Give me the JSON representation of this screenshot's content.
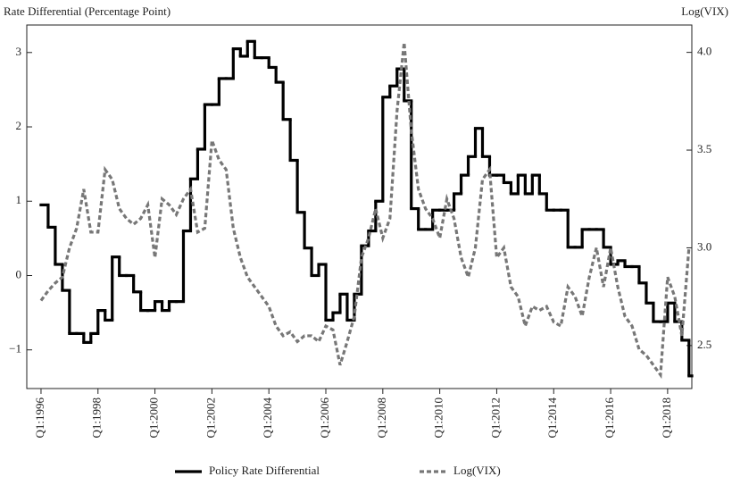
{
  "chart_data": {
    "type": "line",
    "y_label": "Rate Differential (Percentage Point)",
    "y2_label": "Log(VIX)",
    "x": [
      1996,
      1996.25,
      1996.5,
      1996.75,
      1997,
      1997.25,
      1997.5,
      1997.75,
      1998,
      1998.25,
      1998.5,
      1998.75,
      1999,
      1999.25,
      1999.5,
      1999.75,
      2000,
      2000.25,
      2000.5,
      2000.75,
      2001,
      2001.25,
      2001.5,
      2001.75,
      2002,
      2002.25,
      2002.5,
      2002.75,
      2003,
      2003.25,
      2003.5,
      2003.75,
      2004,
      2004.25,
      2004.5,
      2004.75,
      2005,
      2005.25,
      2005.5,
      2005.75,
      2006,
      2006.25,
      2006.5,
      2006.75,
      2007,
      2007.25,
      2007.5,
      2007.75,
      2008,
      2008.25,
      2008.5,
      2008.75,
      2009,
      2009.25,
      2009.5,
      2009.75,
      2010,
      2010.25,
      2010.5,
      2010.75,
      2011,
      2011.25,
      2011.5,
      2011.75,
      2012,
      2012.25,
      2012.5,
      2012.75,
      2013,
      2013.25,
      2013.5,
      2013.75,
      2014,
      2014.25,
      2014.5,
      2014.75,
      2015,
      2015.25,
      2015.5,
      2015.75,
      2016,
      2016.25,
      2016.5,
      2016.75,
      2017,
      2017.25,
      2017.5,
      2017.75,
      2018,
      2018.25,
      2018.5,
      2018.75
    ],
    "series": [
      {
        "name": "Policy Rate Differential",
        "color": "#000000",
        "style": "step",
        "axis": "y",
        "values": [
          0.95,
          0.65,
          0.15,
          -0.2,
          -0.78,
          -0.78,
          -0.9,
          -0.78,
          -0.47,
          -0.6,
          0.25,
          0.0,
          0.0,
          -0.22,
          -0.47,
          -0.47,
          -0.35,
          -0.47,
          -0.35,
          -0.35,
          0.6,
          1.3,
          1.7,
          2.3,
          2.3,
          2.65,
          2.65,
          3.05,
          2.95,
          3.15,
          2.93,
          2.93,
          2.8,
          2.6,
          2.1,
          1.55,
          0.85,
          0.37,
          0.0,
          0.15,
          -0.6,
          -0.5,
          -0.25,
          -0.6,
          -0.25,
          0.4,
          0.6,
          1.0,
          2.4,
          2.55,
          2.78,
          2.35,
          0.9,
          0.62,
          0.62,
          0.88,
          0.88,
          0.88,
          1.1,
          1.35,
          1.6,
          1.98,
          1.6,
          1.35,
          1.35,
          1.25,
          1.1,
          1.35,
          1.1,
          1.35,
          1.1,
          0.88,
          0.88,
          0.88,
          0.38,
          0.38,
          0.62,
          0.62,
          0.62,
          0.38,
          0.15,
          0.2,
          0.12,
          0.12,
          -0.1,
          -0.37,
          -0.62,
          -0.62,
          -0.37,
          -0.62,
          -0.87,
          -1.35
        ]
      },
      {
        "name": "Log(VIX)",
        "color": "#777777",
        "style": "dashed",
        "axis": "y2",
        "values": [
          2.73,
          2.78,
          2.82,
          2.85,
          3.0,
          3.1,
          3.3,
          3.08,
          3.08,
          3.4,
          3.35,
          3.2,
          3.15,
          3.12,
          3.15,
          3.22,
          2.95,
          3.25,
          3.22,
          3.17,
          3.25,
          3.3,
          3.08,
          3.1,
          3.55,
          3.45,
          3.4,
          3.1,
          2.95,
          2.85,
          2.8,
          2.75,
          2.7,
          2.6,
          2.55,
          2.57,
          2.52,
          2.55,
          2.55,
          2.52,
          2.6,
          2.58,
          2.4,
          2.52,
          2.65,
          2.95,
          3.05,
          3.2,
          3.05,
          3.15,
          3.7,
          4.05,
          3.6,
          3.3,
          3.2,
          3.15,
          3.05,
          3.25,
          3.15,
          2.95,
          2.85,
          3.0,
          3.35,
          3.4,
          2.95,
          3.0,
          2.8,
          2.75,
          2.6,
          2.7,
          2.68,
          2.7,
          2.62,
          2.6,
          2.8,
          2.75,
          2.65,
          2.85,
          3.0,
          2.8,
          3.0,
          2.8,
          2.65,
          2.6,
          2.48,
          2.45,
          2.4,
          2.35,
          2.85,
          2.75,
          2.55,
          3.0
        ]
      }
    ],
    "xlim": [
      1995.5,
      2018.85
    ],
    "xticks": [
      {
        "value": 1996,
        "label": "Q1:1996"
      },
      {
        "value": 1998,
        "label": "Q1:1998"
      },
      {
        "value": 2000,
        "label": "Q1:2000"
      },
      {
        "value": 2002,
        "label": "Q1:2002"
      },
      {
        "value": 2004,
        "label": "Q1:2004"
      },
      {
        "value": 2006,
        "label": "Q1:2006"
      },
      {
        "value": 2008,
        "label": "Q1:2008"
      },
      {
        "value": 2010,
        "label": "Q1:2010"
      },
      {
        "value": 2012,
        "label": "Q1:2012"
      },
      {
        "value": 2014,
        "label": "Q1:2014"
      },
      {
        "value": 2016,
        "label": "Q1:2016"
      },
      {
        "value": 2018,
        "label": "Q1:2018"
      }
    ],
    "ylim": [
      -1.52,
      3.37
    ],
    "yticks": [
      {
        "value": -1,
        "label": "−1"
      },
      0,
      1,
      2,
      3
    ],
    "y2lim": [
      2.28,
      4.14
    ],
    "y2ticks": [
      2.5,
      {
        "value": 3,
        "label": "3.0"
      },
      3.5,
      {
        "value": 4,
        "label": "4.0"
      }
    ],
    "grid": false
  }
}
